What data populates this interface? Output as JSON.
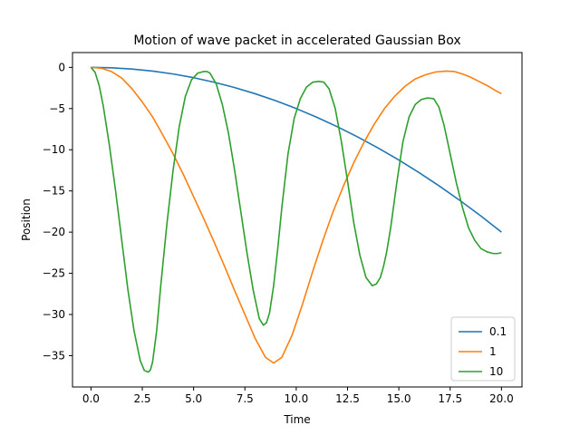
{
  "chart_data": {
    "type": "line",
    "title": "Motion of wave packet in accelerated Gaussian Box",
    "xlabel": "Time",
    "ylabel": "Position",
    "xlim": [
      -0.9,
      21.0
    ],
    "ylim": [
      -38.8,
      1.8
    ],
    "xticks": [
      0.0,
      2.5,
      5.0,
      7.5,
      10.0,
      12.5,
      15.0,
      17.5,
      20.0
    ],
    "xtick_labels": [
      "0.0",
      "2.5",
      "5.0",
      "7.5",
      "10.0",
      "12.5",
      "15.0",
      "17.5",
      "20.0"
    ],
    "yticks": [
      0,
      -5,
      -10,
      -15,
      -20,
      -25,
      -30,
      -35
    ],
    "ytick_labels": [
      "0",
      "−5",
      "−10",
      "−15",
      "−20",
      "−25",
      "−30",
      "−35"
    ],
    "grid": false,
    "legend_position": "lower-right",
    "series": [
      {
        "name": "0.1",
        "color": "#1f77b4",
        "x": [
          0,
          1,
          2,
          3,
          4,
          5,
          6,
          7,
          8,
          9,
          10,
          11,
          12,
          13,
          14,
          15,
          16,
          17,
          18,
          19,
          20
        ],
        "y": [
          0,
          -0.05,
          -0.2,
          -0.45,
          -0.8,
          -1.25,
          -1.8,
          -2.45,
          -3.2,
          -4.05,
          -5.0,
          -6.05,
          -7.2,
          -8.45,
          -9.8,
          -11.25,
          -12.8,
          -14.45,
          -16.2,
          -18.05,
          -20.0
        ]
      },
      {
        "name": "1",
        "color": "#ff7f0e",
        "x": [
          0,
          0.5,
          1,
          1.5,
          2,
          2.5,
          3,
          3.5,
          4,
          4.5,
          5,
          5.5,
          6,
          6.5,
          7,
          7.5,
          8,
          8.5,
          8.9,
          9.3,
          9.8,
          10.3,
          10.8,
          11.3,
          11.8,
          12.3,
          12.8,
          13.3,
          13.8,
          14.3,
          14.8,
          15.3,
          15.8,
          16.3,
          16.8,
          17.3,
          17.7,
          18.1,
          18.5,
          18.9,
          19.3,
          19.7,
          20.0
        ],
        "y": [
          0,
          -0.1,
          -0.5,
          -1.3,
          -2.6,
          -4.2,
          -6.0,
          -8.2,
          -10.5,
          -13.0,
          -15.7,
          -18.4,
          -21.2,
          -24.1,
          -27.1,
          -30.0,
          -32.9,
          -35.2,
          -35.9,
          -35.2,
          -32.5,
          -28.8,
          -24.8,
          -21.0,
          -17.5,
          -14.4,
          -11.6,
          -9.1,
          -6.9,
          -5.0,
          -3.5,
          -2.3,
          -1.4,
          -0.9,
          -0.55,
          -0.45,
          -0.5,
          -0.8,
          -1.2,
          -1.7,
          -2.2,
          -2.8,
          -3.2
        ]
      },
      {
        "name": "10",
        "color": "#2ca02c",
        "x": [
          0,
          0.2,
          0.4,
          0.6,
          0.9,
          1.2,
          1.5,
          1.8,
          2.1,
          2.4,
          2.6,
          2.8,
          2.9,
          3.0,
          3.2,
          3.4,
          3.7,
          4.0,
          4.3,
          4.6,
          4.9,
          5.2,
          5.5,
          5.65,
          5.8,
          6.1,
          6.4,
          6.7,
          7.0,
          7.3,
          7.6,
          7.9,
          8.2,
          8.4,
          8.55,
          8.7,
          8.9,
          9.1,
          9.3,
          9.6,
          9.9,
          10.2,
          10.5,
          10.8,
          11.1,
          11.35,
          11.6,
          11.9,
          12.2,
          12.5,
          12.8,
          13.1,
          13.4,
          13.7,
          13.9,
          14.1,
          14.25,
          14.4,
          14.6,
          14.9,
          15.2,
          15.5,
          15.8,
          16.1,
          16.4,
          16.7,
          16.95,
          17.2,
          17.5,
          17.8,
          18.1,
          18.4,
          18.7,
          19.0,
          19.3,
          19.6,
          19.8,
          20.0
        ],
        "y": [
          0,
          -0.6,
          -2.2,
          -4.7,
          -9.5,
          -15.0,
          -21.0,
          -27.0,
          -32.0,
          -35.6,
          -36.8,
          -37.0,
          -36.7,
          -35.8,
          -32.0,
          -26.5,
          -19.0,
          -12.5,
          -7.2,
          -3.5,
          -1.5,
          -0.7,
          -0.5,
          -0.5,
          -0.7,
          -2.0,
          -4.5,
          -8.0,
          -12.5,
          -17.5,
          -22.5,
          -27.0,
          -30.5,
          -31.3,
          -31.0,
          -29.8,
          -26.5,
          -22.0,
          -17.0,
          -10.5,
          -6.2,
          -3.8,
          -2.4,
          -1.8,
          -1.7,
          -1.8,
          -2.6,
          -5.0,
          -9.0,
          -13.8,
          -18.8,
          -22.8,
          -25.5,
          -26.5,
          -26.3,
          -25.5,
          -24.2,
          -22.5,
          -19.5,
          -14.0,
          -9.0,
          -6.0,
          -4.5,
          -3.9,
          -3.7,
          -3.8,
          -4.8,
          -7.0,
          -10.5,
          -14.0,
          -17.0,
          -19.5,
          -21.0,
          -22.0,
          -22.4,
          -22.6,
          -22.6,
          -22.5
        ]
      }
    ]
  }
}
